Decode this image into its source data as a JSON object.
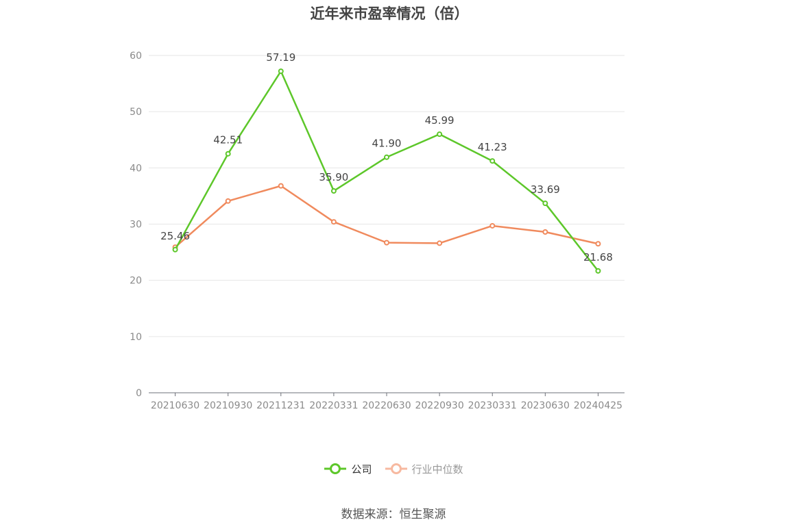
{
  "title": "近年来市盈率情况（倍）",
  "source": "数据来源：恒生聚源",
  "legend": [
    {
      "label": "公司",
      "color": "#5dc72a"
    },
    {
      "label": "行业中位数",
      "color": "#f08a5d",
      "legend_color": "#f7b9a0",
      "text_color": "#999999"
    }
  ],
  "chart_data": {
    "type": "line",
    "title": "近年来市盈率情况（倍）",
    "xlabel": "",
    "ylabel": "",
    "ylim": [
      0,
      60
    ],
    "yticks": [
      "0",
      "10",
      "20",
      "30",
      "40",
      "50",
      "60"
    ],
    "categories": [
      "20210630",
      "20210930",
      "20211231",
      "20220331",
      "20220630",
      "20220930",
      "20230331",
      "20230630",
      "20240425"
    ],
    "grid": true,
    "legend_position": "bottom",
    "series": [
      {
        "name": "公司",
        "color": "#5dc72a",
        "values": [
          25.46,
          42.51,
          57.19,
          35.9,
          41.9,
          45.99,
          41.23,
          33.69,
          21.68
        ],
        "labels": [
          "25.46",
          "42.51",
          "57.19",
          "35.90",
          "41.90",
          "45.99",
          "41.23",
          "33.69",
          "21.68"
        ]
      },
      {
        "name": "行业中位数",
        "color": "#f08a5d",
        "values": [
          25.9,
          34.1,
          36.8,
          30.4,
          26.7,
          26.6,
          29.7,
          28.6,
          26.5
        ]
      }
    ]
  }
}
